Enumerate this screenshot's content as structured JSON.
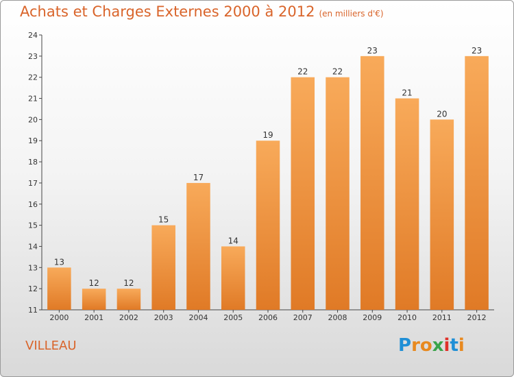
{
  "title": "Achats et Charges Externes 2000 à 2012",
  "subtitle": "(en milliers d'€)",
  "location": "VILLEAU",
  "logo": {
    "letters": [
      "P",
      "r",
      "o",
      "x",
      "i",
      "t",
      "i"
    ],
    "colors": [
      "#1f8fd6",
      "#e8891f",
      "#e8891f",
      "#3aa44a",
      "#e0312a",
      "#1f8fd6",
      "#e8891f"
    ]
  },
  "colors": {
    "bar_light": "#f8aa5a",
    "bar_dark": "#e07a26",
    "axis": "#444444",
    "text": "#d9642a"
  },
  "chart_data": {
    "type": "bar",
    "categories": [
      "2000",
      "2001",
      "2002",
      "2003",
      "2004",
      "2005",
      "2006",
      "2007",
      "2008",
      "2009",
      "2010",
      "2011",
      "2012"
    ],
    "values": [
      13,
      12,
      12,
      15,
      17,
      14,
      19,
      22,
      22,
      23,
      21,
      20,
      23
    ],
    "ylim": [
      11,
      24
    ],
    "yticks": [
      11,
      12,
      13,
      14,
      15,
      16,
      17,
      18,
      19,
      20,
      21,
      22,
      23,
      24
    ],
    "grid": false,
    "title": "Achats et Charges Externes 2000 à 2012",
    "xlabel": "",
    "ylabel": ""
  }
}
